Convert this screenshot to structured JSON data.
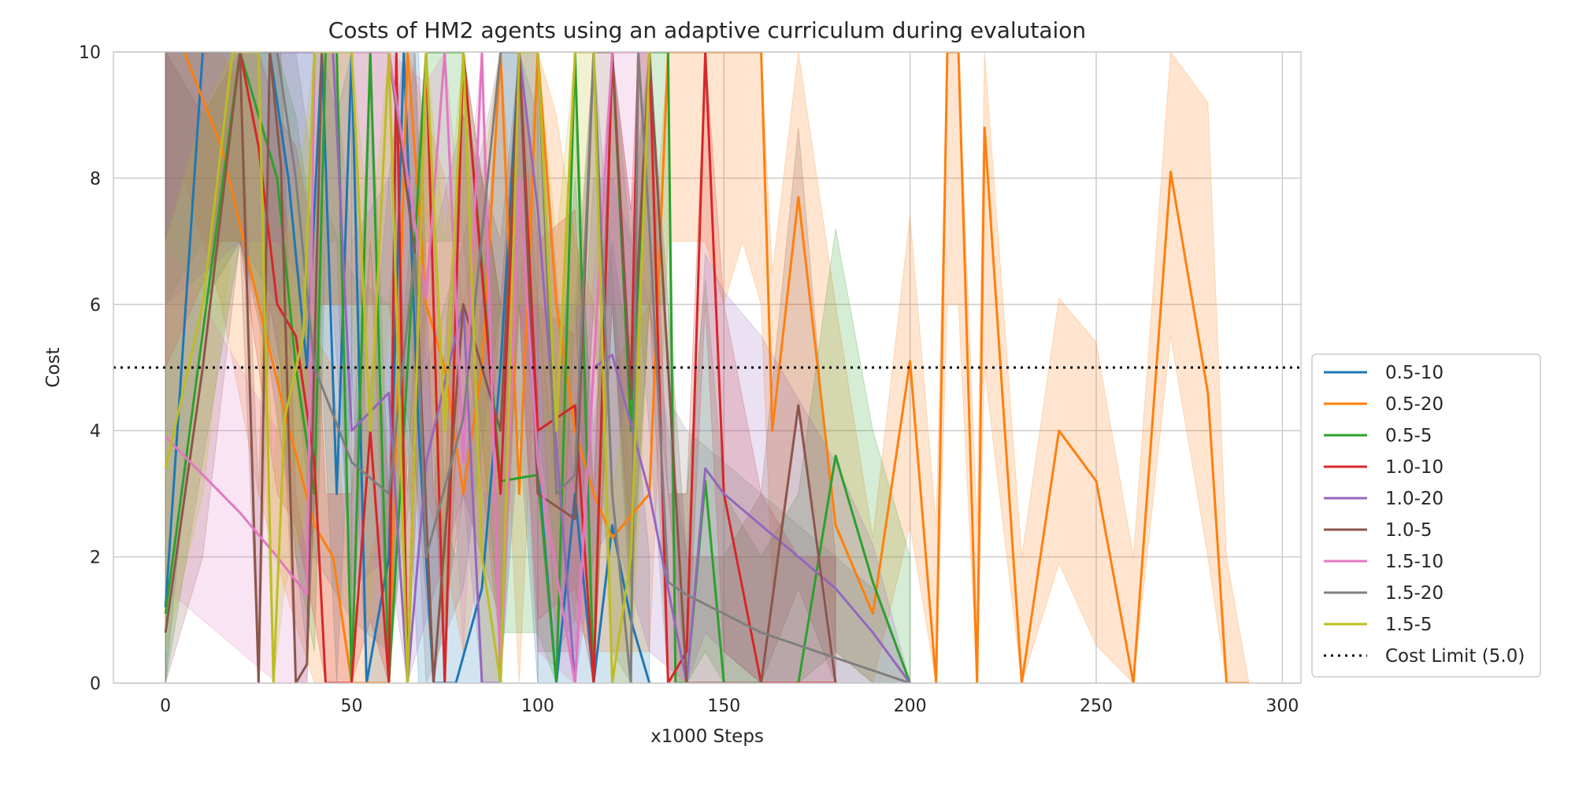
{
  "chart_data": {
    "type": "line",
    "title": "Costs of HM2 agents using an adaptive curriculum during evalutaion",
    "xlabel": "x1000 Steps",
    "ylabel": "Cost",
    "xlim": [
      -14,
      305
    ],
    "ylim": [
      0,
      10
    ],
    "xticks": [
      "0",
      "50",
      "100",
      "150",
      "200",
      "250",
      "300"
    ],
    "yticks": [
      "0",
      "2",
      "4",
      "6",
      "8",
      "10"
    ],
    "grid": true,
    "legend_position": "lower-right-outside",
    "series": [
      {
        "name": "0.5-10",
        "color": "#1f77b4",
        "x": [
          0,
          10,
          20,
          28,
          33,
          38,
          42,
          46,
          50,
          54,
          60,
          64,
          68,
          72,
          78,
          85,
          90,
          95,
          100,
          105,
          110,
          115,
          120,
          125,
          130
        ],
        "y": [
          1.2,
          10,
          10,
          10,
          8,
          5,
          10,
          3,
          10,
          0,
          2,
          10,
          4,
          0,
          0,
          1.5,
          5,
          10,
          3.5,
          0,
          3,
          0,
          2.5,
          1,
          0
        ],
        "band_lo": [
          0,
          6,
          7,
          5,
          3,
          0.5,
          5,
          0,
          5,
          0,
          0,
          5,
          0,
          0,
          0,
          0,
          0,
          4,
          0,
          0,
          0,
          0,
          0,
          0,
          0
        ],
        "band_hi": [
          10,
          10,
          10,
          10,
          10,
          10,
          10,
          9,
          10,
          4,
          8,
          10,
          10,
          3,
          2,
          6,
          10,
          10,
          9,
          4,
          8,
          4,
          7,
          5,
          2
        ]
      },
      {
        "name": "0.5-20",
        "color": "#ff7f0e",
        "x": [
          0,
          5,
          15,
          25,
          32,
          40,
          45,
          50,
          60,
          65,
          70,
          75,
          80,
          85,
          90,
          95,
          100,
          105,
          110,
          115,
          120,
          130,
          135,
          140,
          145,
          150,
          155,
          160,
          163,
          170,
          180,
          190,
          200,
          207,
          210,
          213,
          218,
          220,
          230,
          240,
          250,
          260,
          270,
          280,
          285,
          291
        ],
        "y": [
          10,
          10,
          8.5,
          6,
          4.3,
          2.5,
          2,
          0,
          0,
          10,
          6,
          5,
          3,
          5,
          10,
          3,
          10,
          6,
          4,
          3,
          2.3,
          3,
          10,
          10,
          10,
          10,
          10,
          10,
          4,
          7.7,
          2.5,
          1.1,
          5.1,
          0,
          10,
          10,
          0,
          8.8,
          0,
          4,
          3.2,
          0,
          8.1,
          4.6,
          0,
          0
        ],
        "band_lo": [
          7,
          8,
          6,
          3,
          1.5,
          0,
          0,
          0,
          0,
          6,
          3,
          2,
          0.5,
          2,
          6,
          0,
          6,
          3,
          1,
          0.5,
          0.5,
          0.5,
          7,
          7,
          7,
          6,
          7,
          6,
          1.5,
          4.5,
          0.5,
          0,
          2.5,
          0,
          6,
          6,
          0,
          5,
          0,
          1.9,
          0.6,
          0,
          5.5,
          2,
          0,
          0
        ],
        "band_hi": [
          10,
          10,
          10,
          9,
          7.5,
          5.5,
          5,
          1,
          3,
          10,
          9,
          8,
          6,
          8,
          10,
          6,
          10,
          9,
          7,
          6,
          5,
          6,
          10,
          10,
          10,
          10,
          10,
          10,
          6.5,
          10,
          6,
          2.3,
          7.4,
          2.5,
          10,
          10,
          2.5,
          10,
          2,
          6.1,
          5.4,
          2,
          10,
          9.2,
          2,
          0
        ]
      },
      {
        "name": "0.5-5",
        "color": "#2ca02c",
        "x": [
          0,
          20,
          30,
          35,
          40,
          43,
          46,
          50,
          55,
          60,
          70,
          80,
          90,
          100,
          105,
          110,
          115,
          120,
          125,
          130,
          135,
          137,
          140,
          145,
          150,
          160,
          170,
          180,
          190,
          200
        ],
        "y": [
          1.1,
          10,
          8,
          5,
          3,
          10,
          10,
          0,
          10,
          0,
          10,
          10,
          3.2,
          3.3,
          0,
          10,
          0,
          10,
          4,
          10,
          10,
          0,
          0,
          3.2,
          0,
          0,
          0,
          3.6,
          1.6,
          0
        ],
        "band_lo": [
          0,
          7,
          5,
          2,
          0.5,
          7,
          7,
          0,
          7,
          0,
          7,
          7,
          0.8,
          0.8,
          0,
          6,
          0,
          6,
          1,
          6,
          6,
          0,
          0,
          0.5,
          0,
          0,
          0,
          0.5,
          0,
          0
        ],
        "band_hi": [
          10,
          10,
          10,
          9,
          7,
          10,
          10,
          3,
          10,
          3,
          10,
          10,
          6,
          6,
          3,
          10,
          3,
          10,
          7,
          10,
          10,
          3,
          3,
          6.4,
          3,
          2,
          3,
          7.2,
          4,
          2
        ]
      },
      {
        "name": "1.0-10",
        "color": "#d62728",
        "x": [
          0,
          15,
          20,
          25,
          30,
          35,
          40,
          43,
          50,
          55,
          60,
          62,
          65,
          70,
          75,
          80,
          90,
          95,
          100,
          110,
          115,
          120,
          125,
          127,
          130,
          135,
          140,
          145,
          150,
          160,
          170,
          180
        ],
        "y": [
          10,
          10,
          10,
          8.5,
          6,
          5.5,
          3.5,
          0,
          0,
          4,
          0,
          10,
          0,
          10,
          0,
          10,
          3,
          10,
          4,
          4.4,
          0,
          10,
          4.6,
          10,
          10,
          0,
          0.5,
          10,
          3,
          0,
          0,
          0
        ],
        "band_lo": [
          5,
          7,
          7,
          5,
          3,
          2.5,
          1,
          0,
          0,
          1,
          0,
          6,
          0,
          6,
          0,
          6,
          0.5,
          6,
          1,
          1.5,
          0,
          6,
          2,
          6,
          6,
          0,
          0,
          6,
          0.5,
          0,
          0,
          0
        ],
        "band_hi": [
          10,
          10,
          10,
          10,
          9,
          8.5,
          7,
          3,
          3,
          7,
          3,
          10,
          3,
          10,
          3,
          10,
          6,
          10,
          7,
          7.5,
          3,
          10,
          7.5,
          10,
          10,
          3,
          3,
          10,
          6,
          3,
          2,
          2
        ]
      },
      {
        "name": "1.0-20",
        "color": "#9467bd",
        "x": [
          0,
          20,
          30,
          40,
          45,
          50,
          60,
          65,
          70,
          80,
          85,
          90,
          95,
          100,
          110,
          115,
          120,
          130,
          140,
          145,
          150,
          160,
          170,
          180,
          190,
          200
        ],
        "y": [
          10,
          10,
          10,
          10,
          10,
          4,
          4.6,
          0,
          3.5,
          6,
          0,
          0,
          10,
          7.5,
          0,
          5,
          5.2,
          3,
          0,
          3.4,
          3,
          2.5,
          2,
          1.5,
          0.8,
          0
        ],
        "band_lo": [
          6,
          7,
          7,
          6,
          6,
          1.5,
          2,
          0,
          1,
          3,
          0,
          0,
          6,
          4,
          0,
          2,
          2.5,
          0.5,
          0,
          0.8,
          0.5,
          0,
          0,
          0,
          0,
          0
        ],
        "band_hi": [
          10,
          10,
          10,
          10,
          10,
          7,
          8,
          3,
          6.5,
          9,
          3,
          3,
          10,
          10,
          3,
          8,
          8,
          6,
          2,
          6.8,
          6.2,
          5.5,
          4.5,
          3.5,
          2.2,
          0
        ]
      },
      {
        "name": "1.0-5",
        "color": "#8c564b",
        "x": [
          0,
          10,
          20,
          25,
          28,
          31,
          35,
          38,
          42,
          50,
          60,
          67,
          72,
          80,
          90,
          95,
          100,
          110,
          115,
          120,
          125,
          130,
          140,
          150,
          160,
          170,
          180
        ],
        "y": [
          0.8,
          5,
          10,
          0,
          10,
          8.2,
          0,
          0.3,
          10,
          10,
          10,
          6.8,
          0,
          6,
          4,
          10,
          3,
          2.6,
          10,
          10,
          4.5,
          10,
          0,
          0,
          0,
          4.4,
          0
        ],
        "band_lo": [
          0,
          2,
          7,
          0,
          6,
          5,
          0,
          0,
          6,
          6,
          6,
          3.5,
          0,
          3,
          1,
          6,
          0.5,
          0.5,
          6,
          6,
          1.5,
          6,
          0,
          0,
          0,
          1.5,
          0
        ],
        "band_hi": [
          10,
          9,
          10,
          3,
          10,
          10,
          3,
          2,
          10,
          10,
          10,
          10,
          3,
          9,
          7,
          10,
          6,
          5.5,
          10,
          10,
          7.5,
          10,
          2,
          2,
          3,
          8.8,
          2
        ]
      },
      {
        "name": "1.5-10",
        "color": "#e377c2",
        "x": [
          0,
          20,
          30,
          38,
          40,
          50,
          60,
          70,
          75,
          80,
          85,
          90,
          95,
          100,
          110,
          120,
          130
        ],
        "y": [
          3.9,
          2.7,
          2,
          1.4,
          10,
          10,
          10,
          6.1,
          10,
          3.5,
          10,
          0,
          8,
          3.5,
          0,
          10,
          10
        ],
        "band_lo": [
          1.5,
          0.5,
          0,
          0,
          6,
          6,
          6,
          3,
          6,
          0.5,
          6,
          0,
          4.5,
          0.5,
          0,
          6,
          6
        ],
        "band_hi": [
          7,
          5,
          4,
          3,
          10,
          10,
          10,
          9.5,
          10,
          7,
          10,
          3,
          10,
          7,
          3,
          10,
          10
        ]
      },
      {
        "name": "1.5-20",
        "color": "#7f7f7f",
        "x": [
          0,
          10,
          20,
          30,
          35,
          40,
          50,
          60,
          67,
          70,
          80,
          90,
          95,
          100,
          105,
          110,
          115,
          120,
          125,
          127,
          130,
          135,
          140,
          150,
          160,
          170,
          180,
          190,
          200
        ],
        "y": [
          10,
          10,
          10,
          10,
          8,
          5,
          3.5,
          3,
          6.8,
          2,
          4.2,
          10,
          10,
          10,
          3,
          3.3,
          10,
          3,
          0,
          10,
          7.2,
          1.6,
          1.4,
          1.1,
          0.8,
          0.6,
          0.4,
          0.2,
          0
        ],
        "band_lo": [
          6,
          7,
          7,
          6,
          5,
          2,
          1,
          0.5,
          3.5,
          0,
          1.5,
          6,
          6,
          6,
          0.5,
          1,
          6,
          0.5,
          0,
          6,
          4,
          0,
          0,
          0,
          0,
          0,
          0,
          0,
          0
        ],
        "band_hi": [
          10,
          10,
          10,
          10,
          10,
          8,
          6.5,
          6,
          10,
          5,
          7,
          10,
          10,
          10,
          6,
          6,
          10,
          6.5,
          3,
          10,
          10,
          4.5,
          4,
          3.5,
          3,
          2.5,
          2,
          1.5,
          0
        ]
      },
      {
        "name": "1.5-5",
        "color": "#bcbd22",
        "x": [
          0,
          10,
          18,
          22,
          25,
          29,
          32,
          37,
          40,
          45,
          50,
          55,
          60,
          65,
          70,
          75,
          80,
          85,
          90,
          95,
          100,
          105,
          110,
          115,
          120,
          125,
          130
        ],
        "y": [
          3.4,
          6,
          10,
          10,
          10,
          0,
          4.2,
          5.5,
          10,
          10,
          10,
          4,
          10,
          0,
          10,
          4,
          10,
          2,
          0,
          10,
          10,
          4,
          10,
          10,
          0,
          2,
          10
        ],
        "band_lo": [
          0.5,
          3,
          7,
          7,
          6,
          0,
          1.5,
          2.5,
          6,
          6,
          6,
          1,
          6,
          0,
          6,
          1,
          6,
          0,
          0,
          6,
          6,
          1,
          6,
          6,
          0,
          0,
          6
        ],
        "band_hi": [
          7,
          9,
          10,
          10,
          10,
          3,
          7,
          8.5,
          10,
          10,
          10,
          7,
          10,
          3,
          10,
          7,
          10,
          5,
          3,
          10,
          10,
          7,
          10,
          10,
          3,
          5,
          10
        ]
      }
    ],
    "reference_line": {
      "name": "Cost Limit (5.0)",
      "y": 5.0,
      "color": "#000000",
      "style": "dotted"
    }
  }
}
